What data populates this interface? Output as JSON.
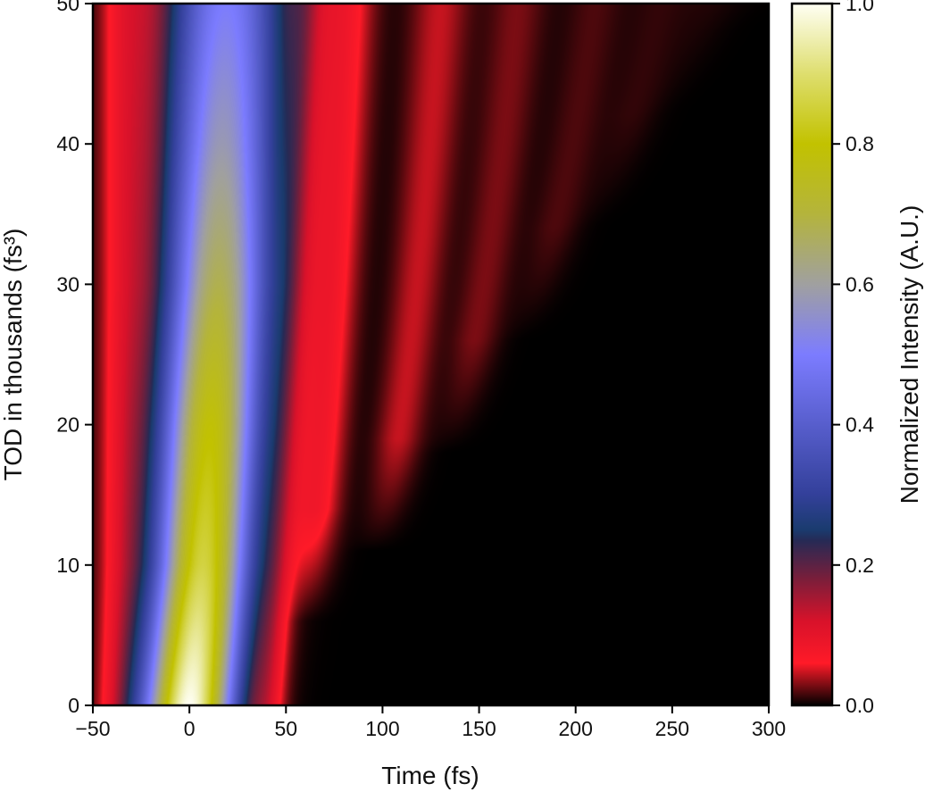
{
  "chart_data": {
    "type": "heatmap",
    "xlabel": "Time (fs)",
    "ylabel": "TOD in thousands (fs³)",
    "colorbar_label": "Normalized Intensity (A.U.)",
    "xlim": [
      -50,
      300
    ],
    "ylim": [
      0,
      50
    ],
    "clim": [
      0.0,
      1.0
    ],
    "x_ticks": [
      -50,
      0,
      50,
      100,
      150,
      200,
      250,
      300
    ],
    "x_tick_labels": [
      "−50",
      "0",
      "50",
      "100",
      "150",
      "200",
      "250",
      "300"
    ],
    "y_ticks": [
      0,
      10,
      20,
      30,
      40,
      50
    ],
    "y_tick_labels": [
      "0",
      "10",
      "20",
      "30",
      "40",
      "50"
    ],
    "colorbar_ticks": [
      0.0,
      0.2,
      0.4,
      0.6,
      0.8,
      1.0
    ],
    "colorbar_tick_labels": [
      "0.0",
      "0.2",
      "0.4",
      "0.6",
      "0.8",
      "1.0"
    ],
    "colormap": [
      {
        "value": 0.0,
        "color": "#000000"
      },
      {
        "value": 0.06,
        "color": "#ff1a28"
      },
      {
        "value": 0.12,
        "color": "#d8122a"
      },
      {
        "value": 0.18,
        "color": "#7a1e3a"
      },
      {
        "value": 0.235,
        "color": "#262a55"
      },
      {
        "value": 0.25,
        "color": "#1a3b6e"
      },
      {
        "value": 0.3,
        "color": "#33409a"
      },
      {
        "value": 0.5,
        "color": "#7c7cff"
      },
      {
        "value": 0.6,
        "color": "#a0a0a0"
      },
      {
        "value": 0.7,
        "color": "#b4b43c"
      },
      {
        "value": 0.8,
        "color": "#c2c200"
      },
      {
        "value": 0.9,
        "color": "#dede6e"
      },
      {
        "value": 1.0,
        "color": "#fffff4"
      }
    ],
    "main_lobe": [
      {
        "tod": 0,
        "center": 0,
        "peak": 1.0
      },
      {
        "tod": 10,
        "center": 7,
        "peak": 0.86
      },
      {
        "tod": 20,
        "center": 11,
        "peak": 0.79
      },
      {
        "tod": 30,
        "center": 15,
        "peak": 0.68
      },
      {
        "tod": 40,
        "center": 17,
        "peak": 0.58
      },
      {
        "tod": 50,
        "center": 19,
        "peak": 0.5
      }
    ],
    "ripple_onset_tod": [
      6,
      11,
      18,
      26,
      34,
      42,
      48
    ],
    "ripple_position_at_50": [
      80,
      130,
      170,
      210,
      243,
      268,
      285
    ]
  }
}
